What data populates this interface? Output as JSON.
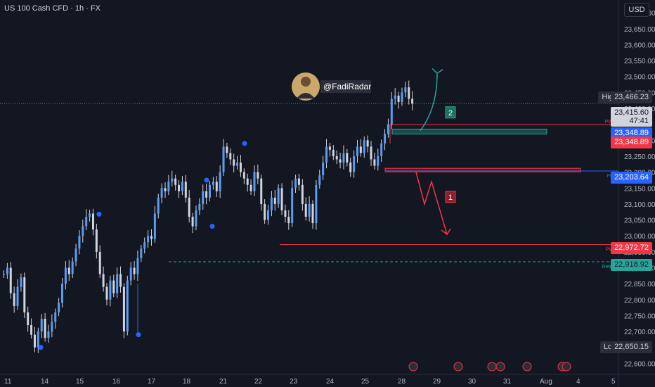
{
  "header": {
    "symbol": "US 100 Cash CFD · 1h · FX"
  },
  "currency": "USD",
  "watermark": "@FadiRadar",
  "price_labels": {
    "high_tag": "High",
    "high_value": "23,466.23",
    "current": "23,415.60",
    "countdown": "47:41",
    "pwh_top": "23,348.89",
    "pwh_bottom": "23,348.89",
    "pdl_value": "23,203.64",
    "pwl_value": "22,972.72",
    "retest_value": "22,918.92",
    "low_tag": "Low",
    "low_value": "22,650.15"
  },
  "level_tags": {
    "pwh": "PWH",
    "pdl": "PDL",
    "pwl": "PWL",
    "retest": "Retest"
  },
  "scenario_labels": {
    "up": "2",
    "down": "1"
  },
  "colors": {
    "bg": "#131722",
    "up": "#d1d4dc",
    "down": "#d1d4dc",
    "red": "#f23645",
    "blue": "#2962ff",
    "teal": "#26a69a",
    "grid": "#1e222d"
  },
  "chart_data": {
    "type": "candlestick",
    "y_ticks": [
      "23,700.00",
      "23,650.00",
      "23,600.00",
      "23,550.00",
      "23,500.00",
      "23,450.00",
      "23,400.00",
      "23,300.00",
      "23,250.00",
      "23,200.00",
      "23,150.00",
      "23,100.00",
      "23,050.00",
      "23,000.00",
      "22,950.00",
      "22,900.00",
      "22,850.00",
      "22,800.00",
      "22,750.00",
      "22,700.00",
      "22,600.00"
    ],
    "x_ticks": [
      "11",
      "14",
      "15",
      "16",
      "17",
      "18",
      "21",
      "22",
      "23",
      "24",
      "25",
      "28",
      "29",
      "30",
      "31",
      "Aug",
      "4",
      "5"
    ],
    "ylim": [
      22570,
      23740
    ],
    "levels": {
      "pwh": 23348.89,
      "pdl": 23203.64,
      "pwl": 22972.72,
      "retest": 22918.92,
      "high": 23466.23,
      "low": 22650.15,
      "current": 23415.6
    },
    "close_path": [
      22880,
      22900,
      22820,
      22780,
      22840,
      22870,
      22760,
      22720,
      22690,
      22650,
      22700,
      22740,
      22680,
      22700,
      22730,
      22760,
      22790,
      22850,
      22900,
      22880,
      22920,
      22960,
      23000,
      23030,
      23060,
      23070,
      23020,
      22950,
      22880,
      22840,
      22800,
      22860,
      22820,
      22880,
      22840,
      22700,
      22860,
      22900,
      22880,
      22930,
      22960,
      22980,
      23000,
      22990,
      23070,
      23120,
      23150,
      23140,
      23170,
      23180,
      23160,
      23140,
      23170,
      23120,
      23060,
      23030,
      23080,
      23100,
      23140,
      23120,
      23160,
      23170,
      23140,
      23200,
      23280,
      23260,
      23240,
      23220,
      23230,
      23200,
      23180,
      23160,
      23140,
      23200,
      23180,
      23100,
      23050,
      23080,
      23120,
      23100,
      23150,
      23080,
      23060,
      23040,
      23150,
      23180,
      23160,
      23100,
      23060,
      23100,
      23040,
      23160,
      23190,
      23230,
      23280,
      23270,
      23250,
      23240,
      23230,
      23260,
      23230,
      23200,
      23250,
      23280,
      23260,
      23300,
      23280,
      23240,
      23220,
      23250,
      23290,
      23320,
      23350,
      23430,
      23440,
      23420,
      23450,
      23466,
      23430,
      23415
    ]
  }
}
